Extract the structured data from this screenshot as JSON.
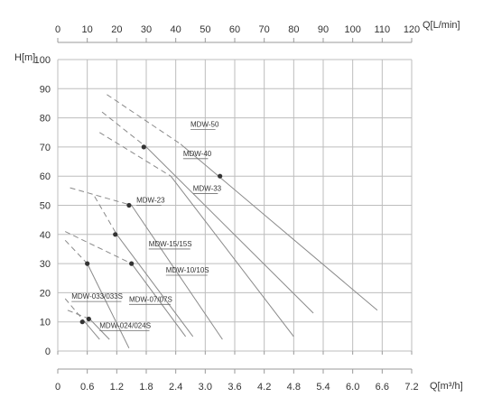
{
  "chart_data": {
    "type": "line",
    "title": "",
    "xlabel": "Q[m³/h]",
    "x2label": "Q[L/min]",
    "ylabel": "H[m]",
    "xlim": [
      0,
      7.2
    ],
    "x2lim": [
      0,
      120
    ],
    "ylim": [
      0,
      100
    ],
    "x_ticks": [
      "0",
      "0.6",
      "1.2",
      "1.8",
      "2.4",
      "3.0",
      "3.6",
      "4.2",
      "4.8",
      "5.4",
      "6.0",
      "6.6",
      "7.2"
    ],
    "x2_ticks": [
      "0",
      "10",
      "20",
      "30",
      "40",
      "50",
      "60",
      "70",
      "80",
      "90",
      "100",
      "110",
      "120"
    ],
    "y_ticks": [
      "0",
      "10",
      "20",
      "30",
      "40",
      "50",
      "60",
      "70",
      "80",
      "90",
      "100"
    ],
    "grid": true,
    "colors": {
      "line": "#8a8a8a",
      "grid": "#bdbdbd",
      "axis": "#9a9a9a",
      "dot": "#333333"
    },
    "series": [
      {
        "name": "MDW-50",
        "dashed": [
          [
            1.0,
            88
          ],
          [
            2.5,
            71
          ]
        ],
        "solid": [
          [
            2.5,
            71
          ],
          [
            6.5,
            14
          ]
        ],
        "label_at": [
          2.7,
          76
        ]
      },
      {
        "name": "MDW-40",
        "dashed": [
          [
            0.9,
            82
          ],
          [
            1.8,
            70
          ]
        ],
        "solid": [
          [
            1.8,
            70
          ],
          [
            5.2,
            13
          ]
        ],
        "label_at": [
          2.55,
          66
        ]
      },
      {
        "name": "MDW-33",
        "dashed": [
          [
            0.85,
            75
          ],
          [
            2.3,
            60
          ]
        ],
        "solid": [
          [
            2.3,
            60
          ],
          [
            4.8,
            5
          ]
        ],
        "label_at": [
          2.75,
          54
        ]
      },
      {
        "name": "MDW-23",
        "dashed": [
          [
            0.25,
            56
          ],
          [
            1.5,
            50
          ]
        ],
        "solid": [
          [
            1.5,
            50
          ],
          [
            3.35,
            4
          ]
        ],
        "label_at": [
          1.6,
          50
        ]
      },
      {
        "name": "MDW-15/15S",
        "dashed": [
          [
            0.75,
            53
          ],
          [
            1.2,
            40
          ]
        ],
        "solid": [
          [
            1.2,
            40
          ],
          [
            2.75,
            5
          ]
        ],
        "label_at": [
          1.85,
          35
        ]
      },
      {
        "name": "MDW-10/10S",
        "dashed": [
          [
            0.15,
            41
          ],
          [
            1.5,
            30
          ]
        ],
        "solid": [
          [
            1.5,
            30
          ],
          [
            2.6,
            5
          ]
        ],
        "label_at": [
          2.2,
          26
        ]
      },
      {
        "name": "MDW-07/07S",
        "dashed": [
          [
            0.15,
            38
          ],
          [
            0.6,
            30
          ]
        ],
        "solid": [
          [
            0.6,
            30
          ],
          [
            1.45,
            1
          ]
        ],
        "label_at": [
          1.45,
          16
        ]
      },
      {
        "name": "MDW-033/033S",
        "dashed": [
          [
            0.15,
            18
          ],
          [
            0.55,
            10
          ]
        ],
        "solid": [
          [
            0.55,
            10
          ],
          [
            0.85,
            4
          ]
        ],
        "label_at": [
          0.28,
          17
        ]
      },
      {
        "name": "MDW-024/024S",
        "dashed": [
          [
            0.2,
            14
          ],
          [
            0.65,
            11
          ]
        ],
        "solid": [
          [
            0.65,
            11
          ],
          [
            1.05,
            4
          ]
        ],
        "label_at": [
          0.85,
          7
        ]
      }
    ],
    "points": [
      {
        "x": 1.75,
        "y": 70
      },
      {
        "x": 3.3,
        "y": 60
      },
      {
        "x": 1.45,
        "y": 50
      },
      {
        "x": 1.17,
        "y": 40
      },
      {
        "x": 0.6,
        "y": 30
      },
      {
        "x": 1.5,
        "y": 30
      },
      {
        "x": 0.5,
        "y": 10
      },
      {
        "x": 0.63,
        "y": 11
      }
    ]
  }
}
